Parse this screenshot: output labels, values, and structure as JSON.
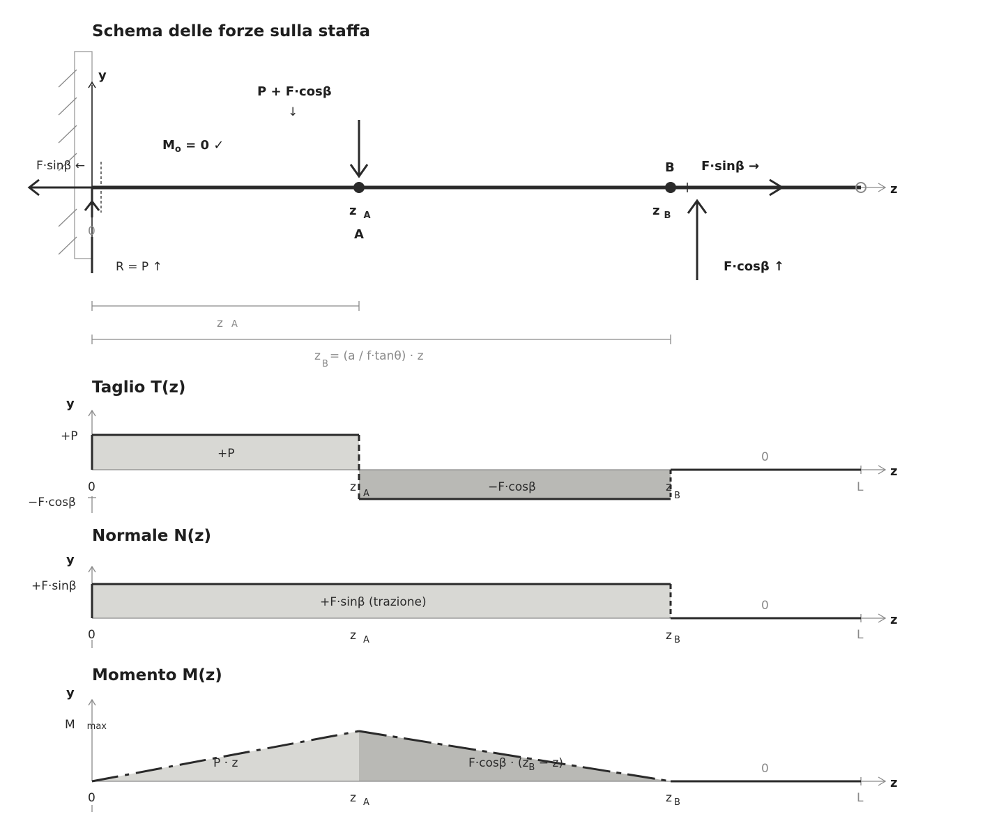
{
  "colors": {
    "ink": "#2a2a2a",
    "fill_light": "#d8d8d4",
    "fill_mid": "#b9b9b5",
    "axis": "#8a8a8a"
  },
  "scheme": {
    "title": "Schema delle forze sulla staffa",
    "y": "y",
    "z": "z",
    "origin": "0",
    "load_label": "P + F·cosβ",
    "load_arrow": "↓",
    "moment_check_prefix": "M",
    "moment_check_sub": "o",
    "moment_check_suffix": " = 0 ✓",
    "left_force": "F·sinβ ←",
    "point_a_z": "z",
    "point_a_sub": "A",
    "point_a": "A",
    "point_b": "B",
    "point_b_z": "z",
    "point_b_sub": "B",
    "right_force": "F·sinβ →",
    "up_force": "F·cosβ ↑",
    "reaction": "R = P ↑",
    "dim_a_z": "z",
    "dim_a_sub": "A",
    "dim_b_z": "z",
    "dim_b_sub": "B",
    "dim_b_expr": "= (a / f·tanθ) · z"
  },
  "shear": {
    "title": "Taglio T(z)",
    "y": "y",
    "z": "z",
    "top_tick": "+P",
    "bottom_tick": "−F·cosβ",
    "region1": "+P",
    "region2": "−F·cosβ",
    "region3": "0",
    "x0": "0",
    "xa": "z",
    "xa_sub": "A",
    "xb": "z",
    "xb_sub": "B",
    "xl": "L"
  },
  "normal": {
    "title": "Normale N(z)",
    "y": "y",
    "z": "z",
    "top_tick": "+F·sinβ",
    "region1": "+F·sinβ (trazione)",
    "region3": "0",
    "x0": "0",
    "xa": "z",
    "xa_sub": "A",
    "xb": "z",
    "xb_sub": "B",
    "xl": "L"
  },
  "moment": {
    "title": "Momento M(z)",
    "y": "y",
    "z": "z",
    "top_tick": "M",
    "top_tick_sub": "max",
    "region1": "P · z",
    "region2_pre": "F·cosβ · (z",
    "region2_sub": "B",
    "region2_post": " − z)",
    "region3": "0",
    "x0": "0",
    "xa": "z",
    "xa_sub": "A",
    "xb": "z",
    "xb_sub": "B",
    "xl": "L"
  }
}
